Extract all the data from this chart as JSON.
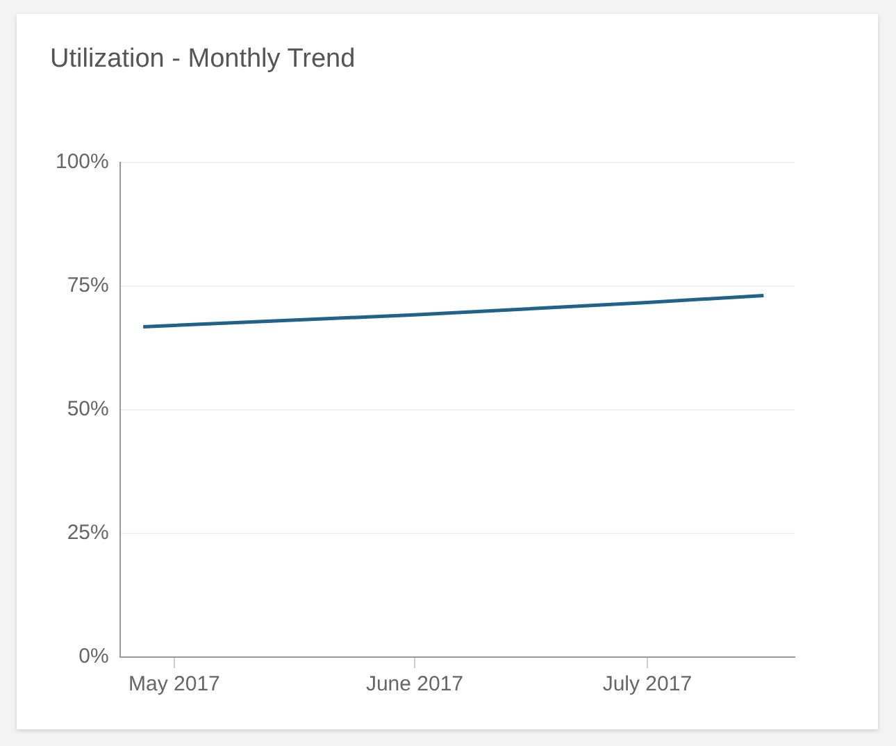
{
  "chart_data": {
    "type": "line",
    "title": "Utilization - Monthly Trend",
    "x": [
      "2017-04-27",
      "2017-06-01",
      "2017-07-01",
      "2017-07-16"
    ],
    "series": [
      {
        "color": "#22628a",
        "values": [
          66.8,
          69.2,
          71.7,
          73.1
        ]
      }
    ],
    "xlim": [
      "2017-04-24",
      "2017-07-20"
    ],
    "xticks": [
      {
        "value": "2017-05-01",
        "label": "May 2017"
      },
      {
        "value": "2017-06-01",
        "label": "June 2017"
      },
      {
        "value": "2017-07-01",
        "label": "July 2017"
      }
    ],
    "ylim": [
      0,
      100
    ],
    "yticks": [
      {
        "value": 0,
        "label": "0%"
      },
      {
        "value": 25,
        "label": "25%"
      },
      {
        "value": 50,
        "label": "50%"
      },
      {
        "value": 75,
        "label": "75%"
      },
      {
        "value": 100,
        "label": "100%"
      }
    ],
    "grid": "y",
    "legend": false,
    "marker": "none",
    "line_style": "solid"
  }
}
